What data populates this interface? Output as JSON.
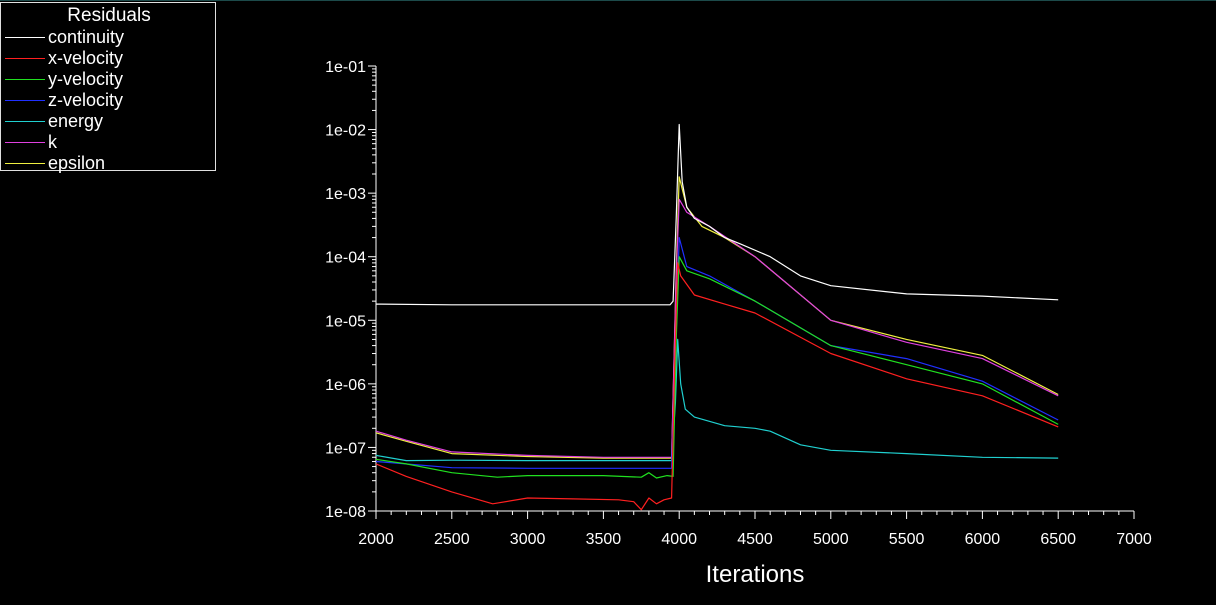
{
  "chart_data": {
    "type": "line",
    "title": "",
    "legend_title": "Residuals",
    "legend_position": "top-left",
    "xlabel": "Iterations",
    "ylabel": "",
    "xlim": [
      2000,
      7000
    ],
    "ylim": [
      1e-08,
      0.1
    ],
    "yscale": "log",
    "grid": false,
    "x_ticks": [
      "2000",
      "2500",
      "3000",
      "3500",
      "4000",
      "4500",
      "5000",
      "5500",
      "6000",
      "6500",
      "7000"
    ],
    "y_ticks": [
      "1e-01",
      "1e-02",
      "1e-03",
      "1e-04",
      "1e-05",
      "1e-06",
      "1e-07",
      "1e-08"
    ],
    "series": [
      {
        "name": "continuity",
        "color": "#ffffff",
        "points": [
          [
            2000,
            1.8e-05
          ],
          [
            2500,
            1.75e-05
          ],
          [
            3000,
            1.75e-05
          ],
          [
            3500,
            1.75e-05
          ],
          [
            3940,
            1.75e-05
          ],
          [
            3960,
            2e-05
          ],
          [
            3980,
            0.0004
          ],
          [
            4000,
            0.012
          ],
          [
            4020,
            0.0015
          ],
          [
            4050,
            0.0006
          ],
          [
            4100,
            0.0004
          ],
          [
            4200,
            0.0003
          ],
          [
            4300,
            0.0002
          ],
          [
            4400,
            0.00016
          ],
          [
            4600,
            0.0001
          ],
          [
            4800,
            5e-05
          ],
          [
            5000,
            3.5e-05
          ],
          [
            5500,
            2.6e-05
          ],
          [
            6000,
            2.4e-05
          ],
          [
            6500,
            2.1e-05
          ]
        ]
      },
      {
        "name": "x-velocity",
        "color": "#ff2020",
        "points": [
          [
            2000,
            5.5e-08
          ],
          [
            2200,
            3.5e-08
          ],
          [
            2500,
            2e-08
          ],
          [
            2770,
            1.3e-08
          ],
          [
            3000,
            1.6e-08
          ],
          [
            3300,
            1.55e-08
          ],
          [
            3600,
            1.5e-08
          ],
          [
            3700,
            1.4e-08
          ],
          [
            3750,
            1.05e-08
          ],
          [
            3800,
            1.6e-08
          ],
          [
            3850,
            1.3e-08
          ],
          [
            3900,
            1.5e-08
          ],
          [
            3950,
            1.6e-08
          ],
          [
            3970,
            2e-06
          ],
          [
            3990,
            8e-05
          ],
          [
            4010,
            5e-05
          ],
          [
            4100,
            2.5e-05
          ],
          [
            4300,
            1.8e-05
          ],
          [
            4500,
            1.3e-05
          ],
          [
            5000,
            3e-06
          ],
          [
            5500,
            1.2e-06
          ],
          [
            6000,
            6.5e-07
          ],
          [
            6500,
            2.1e-07
          ]
        ]
      },
      {
        "name": "y-velocity",
        "color": "#20e020",
        "points": [
          [
            2000,
            6.5e-08
          ],
          [
            2200,
            5.5e-08
          ],
          [
            2500,
            4e-08
          ],
          [
            2800,
            3.4e-08
          ],
          [
            3000,
            3.6e-08
          ],
          [
            3500,
            3.6e-08
          ],
          [
            3750,
            3.4e-08
          ],
          [
            3800,
            4e-08
          ],
          [
            3850,
            3.3e-08
          ],
          [
            3920,
            3.6e-08
          ],
          [
            3960,
            3.5e-08
          ],
          [
            3980,
            5e-06
          ],
          [
            4000,
            0.0001
          ],
          [
            4050,
            6e-05
          ],
          [
            4200,
            4.5e-05
          ],
          [
            4500,
            2e-05
          ],
          [
            5000,
            4e-06
          ],
          [
            5500,
            2e-06
          ],
          [
            6000,
            1e-06
          ],
          [
            6500,
            2.3e-07
          ]
        ]
      },
      {
        "name": "z-velocity",
        "color": "#2030ff",
        "points": [
          [
            2000,
            6e-08
          ],
          [
            2500,
            4.8e-08
          ],
          [
            3000,
            4.7e-08
          ],
          [
            3500,
            4.7e-08
          ],
          [
            3950,
            4.7e-08
          ],
          [
            3980,
            6e-06
          ],
          [
            4000,
            0.0002
          ],
          [
            4050,
            7e-05
          ],
          [
            4200,
            5e-05
          ],
          [
            4500,
            2e-05
          ],
          [
            5000,
            4e-06
          ],
          [
            5500,
            2.5e-06
          ],
          [
            6000,
            1.1e-06
          ],
          [
            6500,
            2.7e-07
          ]
        ]
      },
      {
        "name": "energy",
        "color": "#20d0d0",
        "points": [
          [
            2000,
            7.5e-08
          ],
          [
            2200,
            6.2e-08
          ],
          [
            2500,
            6.3e-08
          ],
          [
            3000,
            6.2e-08
          ],
          [
            3500,
            6.2e-08
          ],
          [
            3950,
            6.2e-08
          ],
          [
            3975,
            5e-07
          ],
          [
            3990,
            5e-06
          ],
          [
            4010,
            1e-06
          ],
          [
            4040,
            4e-07
          ],
          [
            4100,
            3e-07
          ],
          [
            4300,
            2.2e-07
          ],
          [
            4500,
            2e-07
          ],
          [
            4600,
            1.8e-07
          ],
          [
            4800,
            1.1e-07
          ],
          [
            5000,
            9e-08
          ],
          [
            5500,
            8e-08
          ],
          [
            6000,
            7e-08
          ],
          [
            6500,
            6.8e-08
          ]
        ]
      },
      {
        "name": "k",
        "color": "#e040e0",
        "points": [
          [
            2000,
            1.8e-07
          ],
          [
            2200,
            1.3e-07
          ],
          [
            2500,
            8.5e-08
          ],
          [
            3000,
            7.5e-08
          ],
          [
            3500,
            7e-08
          ],
          [
            3950,
            7e-08
          ],
          [
            3980,
            5e-05
          ],
          [
            4000,
            0.0008
          ],
          [
            4050,
            0.0005
          ],
          [
            4200,
            0.0003
          ],
          [
            4500,
            0.0001
          ],
          [
            5000,
            1e-05
          ],
          [
            5500,
            4.5e-06
          ],
          [
            6000,
            2.5e-06
          ],
          [
            6500,
            6.5e-07
          ]
        ]
      },
      {
        "name": "epsilon",
        "color": "#f0f040",
        "points": [
          [
            2000,
            1.7e-07
          ],
          [
            2200,
            1.25e-07
          ],
          [
            2500,
            8e-08
          ],
          [
            3000,
            7.2e-08
          ],
          [
            3500,
            6.8e-08
          ],
          [
            3950,
            6.8e-08
          ],
          [
            3980,
            6e-05
          ],
          [
            4000,
            0.0018
          ],
          [
            4050,
            0.0006
          ],
          [
            4150,
            0.0003
          ],
          [
            4300,
            0.0002
          ],
          [
            4500,
            0.0001
          ],
          [
            5000,
            1e-05
          ],
          [
            5500,
            5e-06
          ],
          [
            6000,
            2.8e-06
          ],
          [
            6500,
            6.8e-07
          ]
        ]
      }
    ]
  }
}
